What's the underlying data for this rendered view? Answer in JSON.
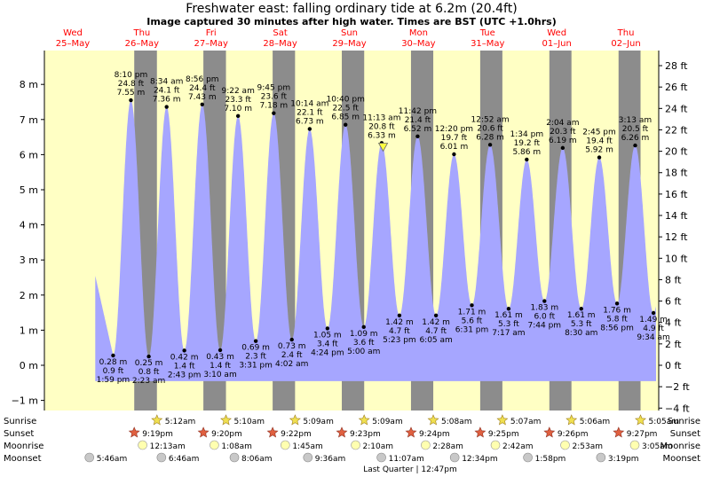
{
  "chart_data": {
    "type": "area",
    "title": "Freshwater east: falling  ordinary tide at 6.2m (20.4ft)",
    "subtitle": "Image captured 30 minutes after high water. Times are BST (UTC +1.0hrs)",
    "ylim_m": [
      -1.2,
      9.3
    ],
    "left_axis_ticks": [
      "−1 m",
      "0 m",
      "1 m",
      "2 m",
      "3 m",
      "4 m",
      "5 m",
      "6 m",
      "7 m",
      "8 m"
    ],
    "right_axis_ticks": [
      "−4 ft",
      "−2 ft",
      "0 ft",
      "2 ft",
      "4 ft",
      "6 ft",
      "8 ft",
      "10 ft",
      "12 ft",
      "14 ft",
      "16 ft",
      "18 ft",
      "20 ft",
      "22 ft",
      "24 ft",
      "26 ft",
      "28 ft"
    ],
    "days": [
      {
        "dow": "Wed",
        "date": "25–May"
      },
      {
        "dow": "Thu",
        "date": "26–May"
      },
      {
        "dow": "Fri",
        "date": "27–May"
      },
      {
        "dow": "Sat",
        "date": "28–May"
      },
      {
        "dow": "Sun",
        "date": "29–May"
      },
      {
        "dow": "Mon",
        "date": "30–May"
      },
      {
        "dow": "Tue",
        "date": "31–May"
      },
      {
        "dow": "Wed",
        "date": "01–Jun"
      },
      {
        "dow": "Thu",
        "date": "02–Jun"
      }
    ],
    "tides": [
      {
        "t": 14.0,
        "h": 0.28,
        "type": "low",
        "m": "0.28 m",
        "ft": "0.9 ft",
        "time": "1:59 pm"
      },
      {
        "t": 20.17,
        "h": 7.55,
        "type": "high",
        "m": "7.55 m",
        "ft": "24.8 ft",
        "time": "8:10 pm"
      },
      {
        "t": 26.38,
        "h": 0.25,
        "type": "low",
        "m": "0.25 m",
        "ft": "0.8 ft",
        "time": "2:23 am"
      },
      {
        "t": 32.57,
        "h": 7.36,
        "type": "high",
        "m": "7.36 m",
        "ft": "24.1 ft",
        "time": "8:34 am"
      },
      {
        "t": 38.72,
        "h": 0.42,
        "type": "low",
        "m": "0.42 m",
        "ft": "1.4 ft",
        "time": "2:43 pm"
      },
      {
        "t": 44.93,
        "h": 7.43,
        "type": "high",
        "m": "7.43 m",
        "ft": "24.4 ft",
        "time": "8:56 pm"
      },
      {
        "t": 51.17,
        "h": 0.43,
        "type": "low",
        "m": "0.43 m",
        "ft": "1.4 ft",
        "time": "3:10 am"
      },
      {
        "t": 57.37,
        "h": 7.1,
        "type": "high",
        "m": "7.10 m",
        "ft": "23.3 ft",
        "time": "9:22 am"
      },
      {
        "t": 63.52,
        "h": 0.69,
        "type": "low",
        "m": "0.69 m",
        "ft": "2.3 ft",
        "time": "3:31 pm"
      },
      {
        "t": 69.75,
        "h": 7.18,
        "type": "high",
        "m": "7.18 m",
        "ft": "23.6 ft",
        "time": "9:45 pm"
      },
      {
        "t": 76.03,
        "h": 0.73,
        "type": "low",
        "m": "0.73 m",
        "ft": "2.4 ft",
        "time": "4:02 am"
      },
      {
        "t": 82.23,
        "h": 6.73,
        "type": "high",
        "m": "6.73 m",
        "ft": "22.1 ft",
        "time": "10:14 am"
      },
      {
        "t": 88.4,
        "h": 1.05,
        "type": "low",
        "m": "1.05 m",
        "ft": "3.4 ft",
        "time": "4:24 pm"
      },
      {
        "t": 94.67,
        "h": 6.85,
        "type": "high",
        "m": "6.85 m",
        "ft": "22.5 ft",
        "time": "10:40 pm"
      },
      {
        "t": 101.0,
        "h": 1.09,
        "type": "low",
        "m": "1.09 m",
        "ft": "3.6 ft",
        "time": "5:00 am"
      },
      {
        "t": 107.22,
        "h": 6.33,
        "type": "high",
        "m": "6.33 m",
        "ft": "20.8 ft",
        "time": "11:13 am"
      },
      {
        "t": 113.38,
        "h": 1.42,
        "type": "low",
        "m": "1.42 m",
        "ft": "4.7 ft",
        "time": "5:23 pm"
      },
      {
        "t": 119.7,
        "h": 6.52,
        "type": "high",
        "m": "6.52 m",
        "ft": "21.4 ft",
        "time": "11:42 pm"
      },
      {
        "t": 126.08,
        "h": 1.42,
        "type": "low",
        "m": "1.42 m",
        "ft": "4.7 ft",
        "time": "6:05 am"
      },
      {
        "t": 132.33,
        "h": 6.01,
        "type": "high",
        "m": "6.01 m",
        "ft": "19.7 ft",
        "time": "12:20 pm"
      },
      {
        "t": 138.52,
        "h": 1.71,
        "type": "low",
        "m": "1.71 m",
        "ft": "5.6 ft",
        "time": "6:31 pm"
      },
      {
        "t": 144.87,
        "h": 6.28,
        "type": "high",
        "m": "6.28 m",
        "ft": "20.6 ft",
        "time": "12:52 am"
      },
      {
        "t": 151.28,
        "h": 1.61,
        "type": "low",
        "m": "1.61 m",
        "ft": "5.3 ft",
        "time": "7:17 am"
      },
      {
        "t": 157.57,
        "h": 5.86,
        "type": "high",
        "m": "5.86 m",
        "ft": "19.2 ft",
        "time": "1:34 pm"
      },
      {
        "t": 163.73,
        "h": 1.83,
        "type": "low",
        "m": "1.83 m",
        "ft": "6.0 ft",
        "time": "7:44 pm"
      },
      {
        "t": 170.07,
        "h": 6.19,
        "type": "high",
        "m": "6.19 m",
        "ft": "20.3 ft",
        "time": "2:04 am"
      },
      {
        "t": 176.5,
        "h": 1.61,
        "type": "low",
        "m": "1.61 m",
        "ft": "5.3 ft",
        "time": "8:30 am"
      },
      {
        "t": 182.75,
        "h": 5.92,
        "type": "high",
        "m": "5.92 m",
        "ft": "19.4 ft",
        "time": "2:45 pm"
      },
      {
        "t": 188.93,
        "h": 1.76,
        "type": "low",
        "m": "1.76 m",
        "ft": "5.8 ft",
        "time": "8:56 pm"
      },
      {
        "t": 195.22,
        "h": 6.26,
        "type": "high",
        "m": "6.26 m",
        "ft": "20.5 ft",
        "time": "3:13 am"
      },
      {
        "t": 201.57,
        "h": 1.49,
        "type": "low",
        "m": "1.49 m",
        "ft": "4.9 ft",
        "time": "9:34 am"
      }
    ],
    "current_marker_h": 6.2,
    "night_periods": [
      [
        21.33,
        29.2
      ],
      [
        45.33,
        53.17
      ],
      [
        69.37,
        77.15
      ],
      [
        93.38,
        101.15
      ],
      [
        117.4,
        125.13
      ],
      [
        141.42,
        149.12
      ],
      [
        165.43,
        173.1
      ],
      [
        189.45,
        197.08
      ]
    ],
    "row_labels": [
      "Sunrise",
      "Sunset",
      "Moonrise",
      "Moonset"
    ],
    "sunrise": [
      {
        "t": 29.2,
        "label": "5:12am"
      },
      {
        "t": 53.17,
        "label": "5:10am"
      },
      {
        "t": 77.15,
        "label": "5:09am"
      },
      {
        "t": 101.15,
        "label": "5:09am"
      },
      {
        "t": 125.13,
        "label": "5:08am"
      },
      {
        "t": 149.12,
        "label": "5:07am"
      },
      {
        "t": 173.1,
        "label": "5:06am"
      },
      {
        "t": 197.08,
        "label": "5:05am"
      }
    ],
    "sunset": [
      {
        "t": 21.33,
        "label": "9:19pm"
      },
      {
        "t": 45.33,
        "label": "9:20pm"
      },
      {
        "t": 69.37,
        "label": "9:22pm"
      },
      {
        "t": 93.38,
        "label": "9:23pm"
      },
      {
        "t": 117.4,
        "label": "9:24pm"
      },
      {
        "t": 141.42,
        "label": "9:25pm"
      },
      {
        "t": 165.43,
        "label": "9:26pm"
      },
      {
        "t": 189.45,
        "label": "9:27pm"
      }
    ],
    "moonrise": [
      {
        "t": 24.22,
        "label": "12:13am"
      },
      {
        "t": 49.13,
        "label": "1:08am"
      },
      {
        "t": 73.75,
        "label": "1:45am"
      },
      {
        "t": 98.17,
        "label": "2:10am"
      },
      {
        "t": 122.47,
        "label": "2:28am"
      },
      {
        "t": 146.7,
        "label": "2:42am"
      },
      {
        "t": 170.88,
        "label": "2:53am"
      },
      {
        "t": 195.08,
        "label": "3:05am"
      }
    ],
    "moonset": [
      {
        "t": 5.77,
        "label": "5:46am"
      },
      {
        "t": 30.77,
        "label": "6:46am"
      },
      {
        "t": 56.1,
        "label": "8:06am"
      },
      {
        "t": 81.6,
        "label": "9:36am"
      },
      {
        "t": 107.12,
        "label": "11:07am"
      },
      {
        "t": 132.57,
        "label": "12:34pm"
      },
      {
        "t": 157.97,
        "label": "1:58pm"
      },
      {
        "t": 183.32,
        "label": "3:19pm"
      }
    ],
    "moon_phase_note": "Last Quarter | 12:47pm",
    "colors": {
      "day": "#ffffc4",
      "night": "#8c8c8c",
      "water": "#a6a6ff",
      "sunrise_star": "#f0e050",
      "sunset_star": "#e06040",
      "moonrise": "#ffffb0",
      "moonset": "#c8c8c8",
      "day_header": "#ff0000"
    }
  }
}
